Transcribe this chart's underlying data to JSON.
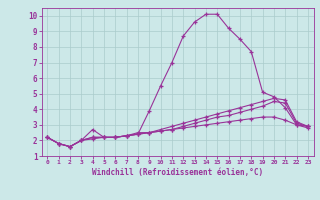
{
  "xlabel": "Windchill (Refroidissement éolien,°C)",
  "xlim": [
    -0.5,
    23.5
  ],
  "ylim": [
    1,
    10.5
  ],
  "yticks": [
    1,
    2,
    3,
    4,
    5,
    6,
    7,
    8,
    9,
    10
  ],
  "xticks": [
    0,
    1,
    2,
    3,
    4,
    5,
    6,
    7,
    8,
    9,
    10,
    11,
    12,
    13,
    14,
    15,
    16,
    17,
    18,
    19,
    20,
    21,
    22,
    23
  ],
  "bg_color": "#cce8e8",
  "grid_color": "#aacccc",
  "line_color": "#993399",
  "series": [
    [
      2.2,
      1.8,
      1.6,
      2.0,
      2.1,
      2.2,
      2.2,
      2.3,
      2.4,
      3.9,
      5.5,
      7.0,
      8.7,
      9.6,
      10.1,
      10.1,
      9.2,
      8.5,
      7.7,
      5.1,
      4.8,
      4.1,
      3.0,
      2.9
    ],
    [
      2.2,
      1.8,
      1.6,
      2.0,
      2.7,
      2.2,
      2.2,
      2.3,
      2.5,
      2.5,
      2.6,
      2.7,
      2.9,
      3.1,
      3.3,
      3.5,
      3.6,
      3.8,
      4.0,
      4.2,
      4.5,
      4.4,
      3.1,
      2.9
    ],
    [
      2.2,
      1.8,
      1.6,
      2.0,
      2.2,
      2.2,
      2.2,
      2.3,
      2.4,
      2.5,
      2.7,
      2.9,
      3.1,
      3.3,
      3.5,
      3.7,
      3.9,
      4.1,
      4.3,
      4.5,
      4.7,
      4.6,
      3.2,
      2.9
    ],
    [
      2.2,
      1.8,
      1.6,
      2.0,
      2.2,
      2.2,
      2.2,
      2.3,
      2.4,
      2.5,
      2.6,
      2.7,
      2.8,
      2.9,
      3.0,
      3.1,
      3.2,
      3.3,
      3.4,
      3.5,
      3.5,
      3.3,
      3.0,
      2.8
    ]
  ]
}
